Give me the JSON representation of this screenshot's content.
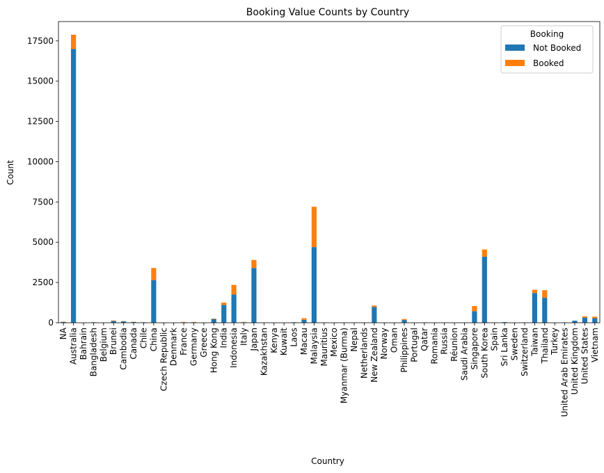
{
  "chart_data": {
    "type": "bar",
    "stacked": true,
    "title": "Booking Value Counts by Country",
    "xlabel": "Country",
    "ylabel": "Count",
    "ylim": [
      0,
      18700
    ],
    "yticks": [
      0,
      2500,
      5000,
      7500,
      10000,
      12500,
      15000,
      17500
    ],
    "legend": {
      "title": "Booking",
      "position": "top-right"
    },
    "categories": [
      "NA",
      "Australia",
      "Bahrain",
      "Bangladesh",
      "Belgium",
      "Brunei",
      "Cambodia",
      "Canada",
      "Chile",
      "China",
      "Czech Republic",
      "Denmark",
      "France",
      "Germany",
      "Greece",
      "Hong Kong",
      "India",
      "Indonesia",
      "Italy",
      "Japan",
      "Kazakhstan",
      "Kenya",
      "Kuwait",
      "Laos",
      "Macau",
      "Malaysia",
      "Mauritius",
      "Mexico",
      "Myanmar (Burma)",
      "Nepal",
      "Netherlands",
      "New Zealand",
      "Norway",
      "Oman",
      "Philippines",
      "Portugal",
      "Qatar",
      "Romania",
      "Russia",
      "Réunion",
      "Saudi Arabia",
      "Singapore",
      "South Korea",
      "Spain",
      "Sri Lanka",
      "Sweden",
      "Switzerland",
      "Taiwan",
      "Thailand",
      "Turkey",
      "United Arab Emirates",
      "United Kingdom",
      "United States",
      "Vietnam"
    ],
    "series": [
      {
        "name": "Not Booked",
        "color": "#1f77b4",
        "values": [
          60,
          17000,
          3,
          30,
          5,
          110,
          90,
          50,
          30,
          2650,
          3,
          3,
          30,
          30,
          3,
          230,
          1100,
          1750,
          30,
          3400,
          3,
          3,
          3,
          30,
          180,
          4700,
          20,
          3,
          20,
          20,
          20,
          980,
          3,
          3,
          170,
          3,
          5,
          3,
          20,
          3,
          20,
          720,
          4100,
          20,
          40,
          3,
          20,
          1850,
          1550,
          3,
          20,
          130,
          320,
          280
        ]
      },
      {
        "name": "Booked",
        "color": "#ff7f0e",
        "values": [
          5,
          880,
          0,
          0,
          0,
          30,
          10,
          5,
          0,
          750,
          0,
          0,
          20,
          20,
          0,
          30,
          150,
          600,
          20,
          500,
          0,
          0,
          0,
          0,
          100,
          2500,
          0,
          0,
          0,
          0,
          0,
          90,
          0,
          0,
          60,
          0,
          10,
          0,
          0,
          0,
          0,
          320,
          450,
          0,
          0,
          0,
          0,
          200,
          470,
          0,
          0,
          0,
          80,
          100
        ]
      }
    ]
  }
}
